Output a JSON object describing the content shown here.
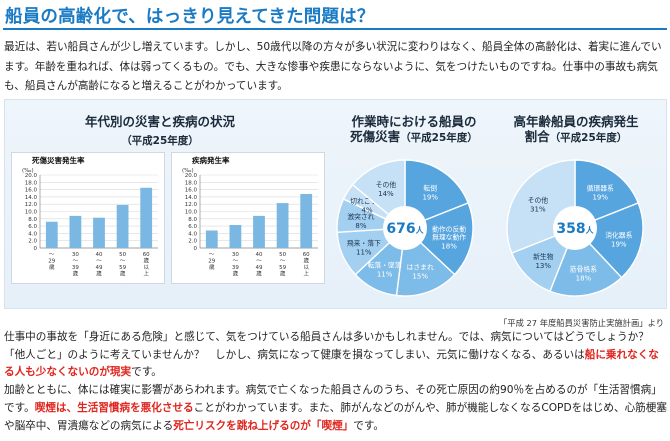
{
  "header": {
    "title": "船員の高齢化で、はっきり見えてきた問題は？"
  },
  "intro_text": "最近は、若い船員さんが少し増えています。しかし、50歳代以降の方々が多い状況に変わりはなく、船員全体の高齢化は、着実に進んでいます。年齢を重ねれば、体は弱ってくるもの。でも、大きな惨事や疾患にならないように、気をつけたいものですね。仕事中の事故も病気も、船員さんが高齢になると増えることがわかっています。",
  "panel1": {
    "title": "年代別の災害と疾病の状況",
    "subtitle": "（平成25年度）"
  },
  "panel2": {
    "title_line1": "作業時における船員の",
    "title_line2": "死傷災害",
    "subtitle": "（平成25年度）"
  },
  "panel3": {
    "title_line1": "高年齢船員の疾病発生",
    "title_line2": "割合",
    "subtitle": "（平成25年度）"
  },
  "chart_data": [
    {
      "type": "bar",
      "title": "死傷災害発生率",
      "unit": "(‰)",
      "categories": [
        "〜29歳",
        "30〜39歳",
        "40〜49歳",
        "50〜59歳",
        "60歳以上"
      ],
      "category_labels": [
        [
          "〜",
          "29",
          "歳"
        ],
        [
          "30",
          "〜",
          "39",
          "歳"
        ],
        [
          "40",
          "〜",
          "49",
          "歳"
        ],
        [
          "50",
          "〜",
          "59",
          "歳"
        ],
        [
          "60",
          "歳",
          "以",
          "上"
        ]
      ],
      "values": [
        7.2,
        8.8,
        8.3,
        11.8,
        16.5
      ],
      "ylim": [
        0,
        20
      ],
      "yticks": [
        "0",
        "2.0",
        "4.0",
        "6.0",
        "8.0",
        "10.0",
        "12.0",
        "14.0",
        "16.0",
        "18.0",
        "20.0"
      ],
      "color": "#7ab8e3",
      "grid": true
    },
    {
      "type": "bar",
      "title": "疾病発生率",
      "unit": "(‰)",
      "categories": [
        "〜29歳",
        "30〜39歳",
        "40〜49歳",
        "50〜59歳",
        "60歳以上"
      ],
      "category_labels": [
        [
          "〜",
          "29",
          "歳"
        ],
        [
          "30",
          "〜",
          "39",
          "歳"
        ],
        [
          "40",
          "〜",
          "49",
          "歳"
        ],
        [
          "50",
          "〜",
          "59",
          "歳"
        ],
        [
          "60",
          "歳",
          "以",
          "上"
        ]
      ],
      "values": [
        4.8,
        6.3,
        8.8,
        12.3,
        14.8
      ],
      "ylim": [
        0,
        20
      ],
      "yticks": [
        "0",
        "2.0",
        "4.0",
        "6.0",
        "8.0",
        "10.0",
        "12.0",
        "14.0",
        "16.0",
        "18.0",
        "20.0"
      ],
      "color": "#7ab8e3",
      "grid": true
    },
    {
      "type": "pie",
      "title": "作業時における船員の死傷災害",
      "center_number": "676",
      "center_unit": "人",
      "slices": [
        {
          "label": "転倒",
          "value": 19,
          "display": "19%",
          "color": "#57a5df"
        },
        {
          "label": "動作の反動・無理な動作",
          "label_lines": [
            "動作の反動",
            "無理な動作"
          ],
          "value": 18,
          "display": "18%",
          "color": "#57a5df"
        },
        {
          "label": "はさまれ",
          "value": 15,
          "display": "15%",
          "color": "#7dbbe8"
        },
        {
          "label": "転落・墜落",
          "value": 11,
          "display": "11%",
          "color": "#7dbbe8"
        },
        {
          "label": "飛来・落下",
          "value": 11,
          "display": "11%",
          "color": "#a3cff0"
        },
        {
          "label": "激突され",
          "value": 8,
          "display": "8%",
          "color": "#a3cff0"
        },
        {
          "label": "切れこすれ",
          "value": 4,
          "display": "4%",
          "color": "#c6e1f6"
        },
        {
          "label": "その他",
          "value": 14,
          "display": "14%",
          "color": "#c6e1f6"
        }
      ]
    },
    {
      "type": "pie",
      "title": "高年齢船員の疾病発生割合",
      "center_number": "358",
      "center_unit": "人",
      "slices": [
        {
          "label": "循環器系",
          "value": 19,
          "display": "19%",
          "color": "#57a5df"
        },
        {
          "label": "消化器系",
          "value": 19,
          "display": "19%",
          "color": "#57a5df"
        },
        {
          "label": "筋骨格系",
          "value": 18,
          "display": "18%",
          "color": "#7dbbe8"
        },
        {
          "label": "新生物",
          "value": 13,
          "display": "13%",
          "color": "#a3cff0"
        },
        {
          "label": "その他",
          "value": 31,
          "display": "31%",
          "color": "#c6e1f6"
        }
      ]
    }
  ],
  "source_note": "「平成 27 年度船員災害防止実施計画」より",
  "body": {
    "p1_a": "仕事中の事故を「身近にある危険」と感じて、気をつけている船員さんは多いかもしれません。では、病気についてはどうでしょうか？「他人ごと」のように考えていませんか？　しかし、病気になって健康を損なってしまい、元気に働けなくなる、あるいは",
    "p1_red": "船に乗れなくなる人も少なくないのが現実",
    "p1_b": "です。",
    "p2_a": "加齢とともに、体には確実に影響があらわれます。病気で亡くなった船員さんのうち、その死亡原因の約90％を占めるのが「生活習慣病」です。",
    "p2_red1": "喫煙は、生活習慣病を悪化させる",
    "p2_b": "ことがわかっています。また、肺がんなどのがんや、肺が機能しなくなるCOPDをはじめ、心筋梗塞や脳卒中、胃潰瘍などの病気による",
    "p2_red2": "死亡リスクを跳ね上げるのが「喫煙」",
    "p2_c": "です。"
  }
}
